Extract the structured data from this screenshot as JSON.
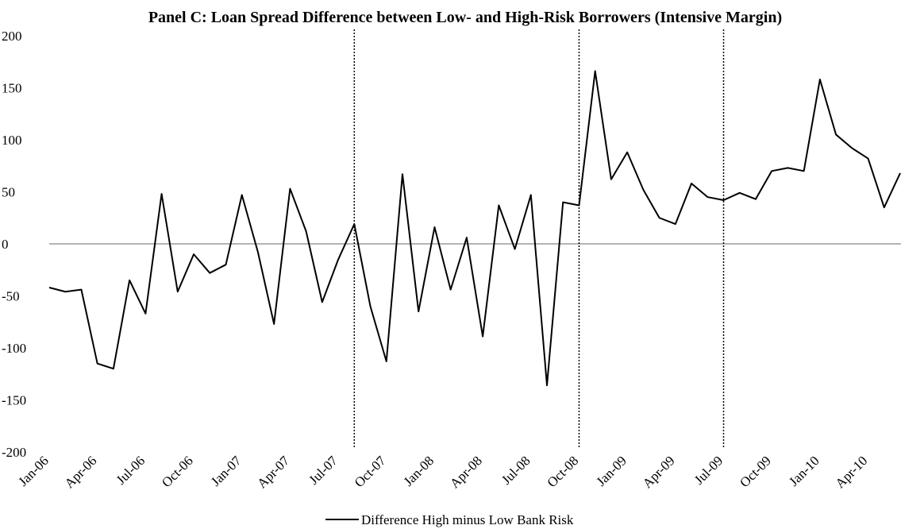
{
  "chart_data": {
    "type": "line",
    "title": "Panel C: Loan Spread Difference between Low- and High-Risk Borrowers (Intensive Margin)",
    "categories": [
      "Jan-06",
      null,
      null,
      "Apr-06",
      null,
      null,
      "Jul-06",
      null,
      null,
      "Oct-06",
      null,
      null,
      "Jan-07",
      null,
      null,
      "Apr-07",
      null,
      null,
      "Jul-07",
      null,
      null,
      "Oct-07",
      null,
      null,
      "Jan-08",
      null,
      null,
      "Apr-08",
      null,
      null,
      "Jul-08",
      null,
      null,
      "Oct-08",
      null,
      null,
      "Jan-09",
      null,
      null,
      "Apr-09",
      null,
      null,
      "Jul-09",
      null,
      null,
      "Oct-09",
      null,
      null,
      "Jan-10",
      null,
      null,
      "Apr-10",
      null,
      null
    ],
    "series": [
      {
        "name": "Difference High minus Low Bank Risk",
        "color": "#000000",
        "values": [
          -42,
          -46,
          -44,
          -115,
          -120,
          -35,
          -67,
          48,
          -46,
          -10,
          -28,
          -20,
          47,
          -8,
          -77,
          53,
          12,
          -56,
          -15,
          19,
          -60,
          -113,
          67,
          -65,
          16,
          -44,
          6,
          -89,
          37,
          -5,
          47,
          -136,
          40,
          37,
          166,
          62,
          88,
          52,
          25,
          19,
          58,
          45,
          42,
          49,
          43,
          70,
          73,
          70,
          158,
          105,
          92,
          82,
          35,
          68
        ]
      }
    ],
    "ylim": [
      -200,
      200
    ],
    "yticks": [
      -200,
      -150,
      -100,
      -50,
      0,
      50,
      100,
      150,
      200
    ],
    "vlines": [
      19,
      33,
      42
    ]
  }
}
